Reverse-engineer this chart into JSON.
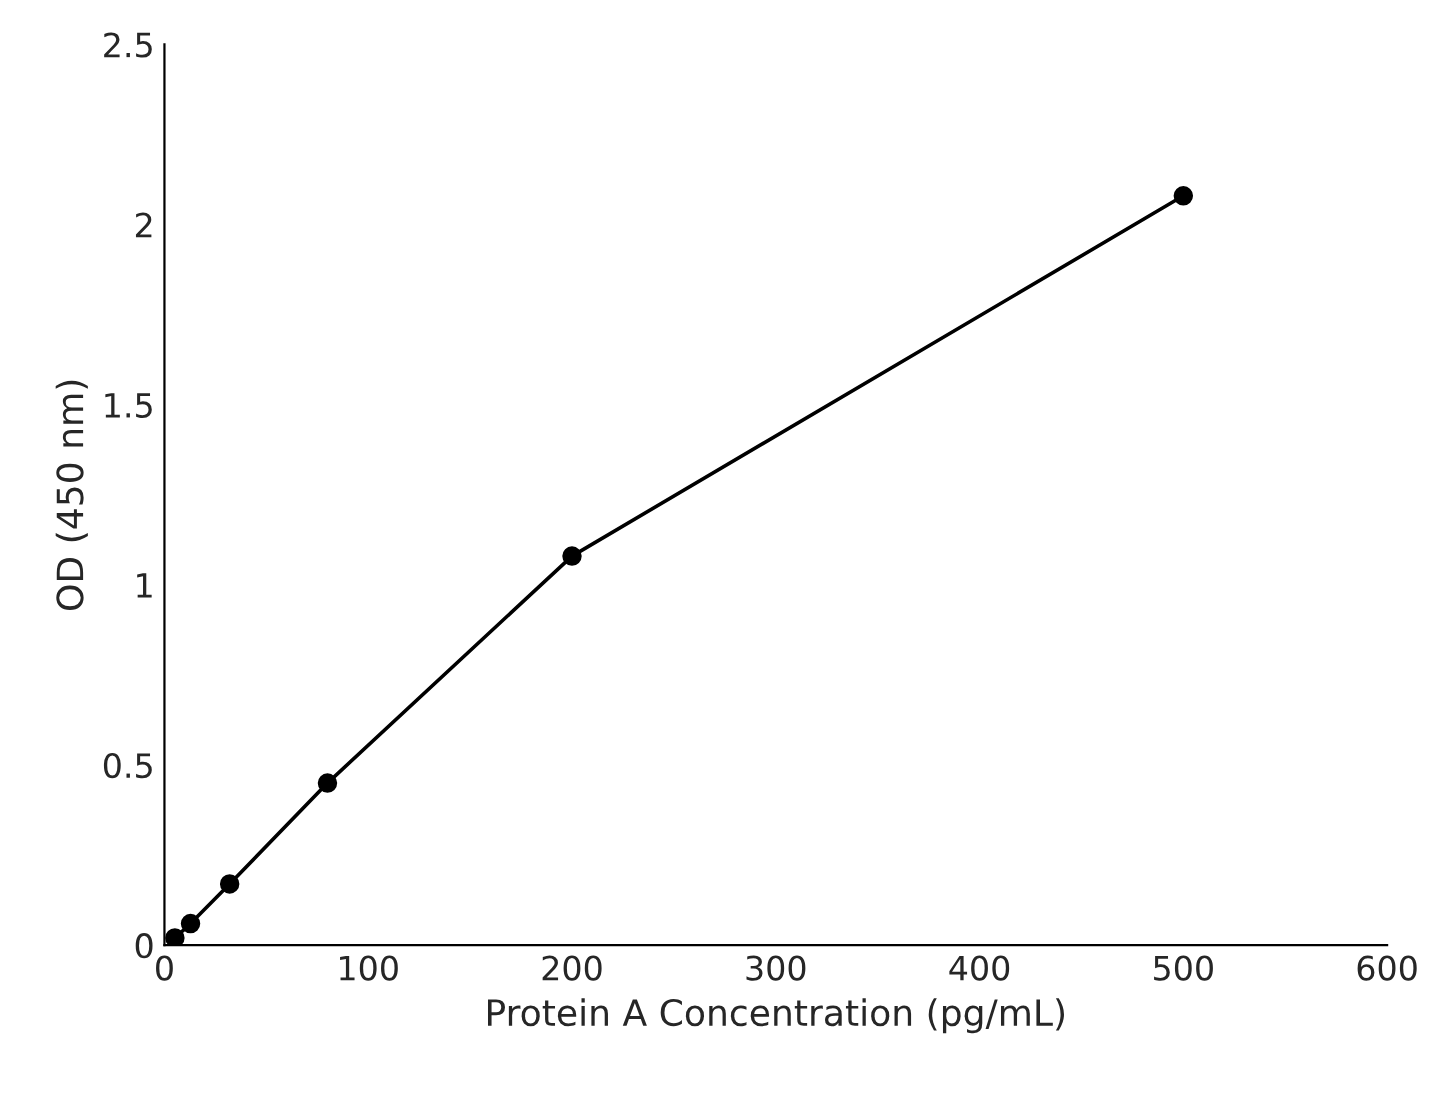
{
  "chart_data": {
    "type": "line",
    "xlabel": "Protein A Concentration (pg/mL)",
    "ylabel": "OD (450 nm)",
    "x": [
      5.12,
      12.8,
      32,
      80,
      200,
      500
    ],
    "series": [
      {
        "color": "#000000",
        "values": [
          0.02,
          0.06,
          0.17,
          0.45,
          1.08,
          2.08
        ]
      }
    ],
    "xlim": [
      0,
      600
    ],
    "xticks": [
      0,
      100,
      200,
      300,
      400,
      500,
      600
    ],
    "ylim": [
      0,
      2.5
    ],
    "yticks": [
      0,
      0.5,
      1,
      1.5,
      2,
      2.5
    ],
    "marker": "circle",
    "line_style": "solid",
    "grid": false,
    "legend": false
  }
}
